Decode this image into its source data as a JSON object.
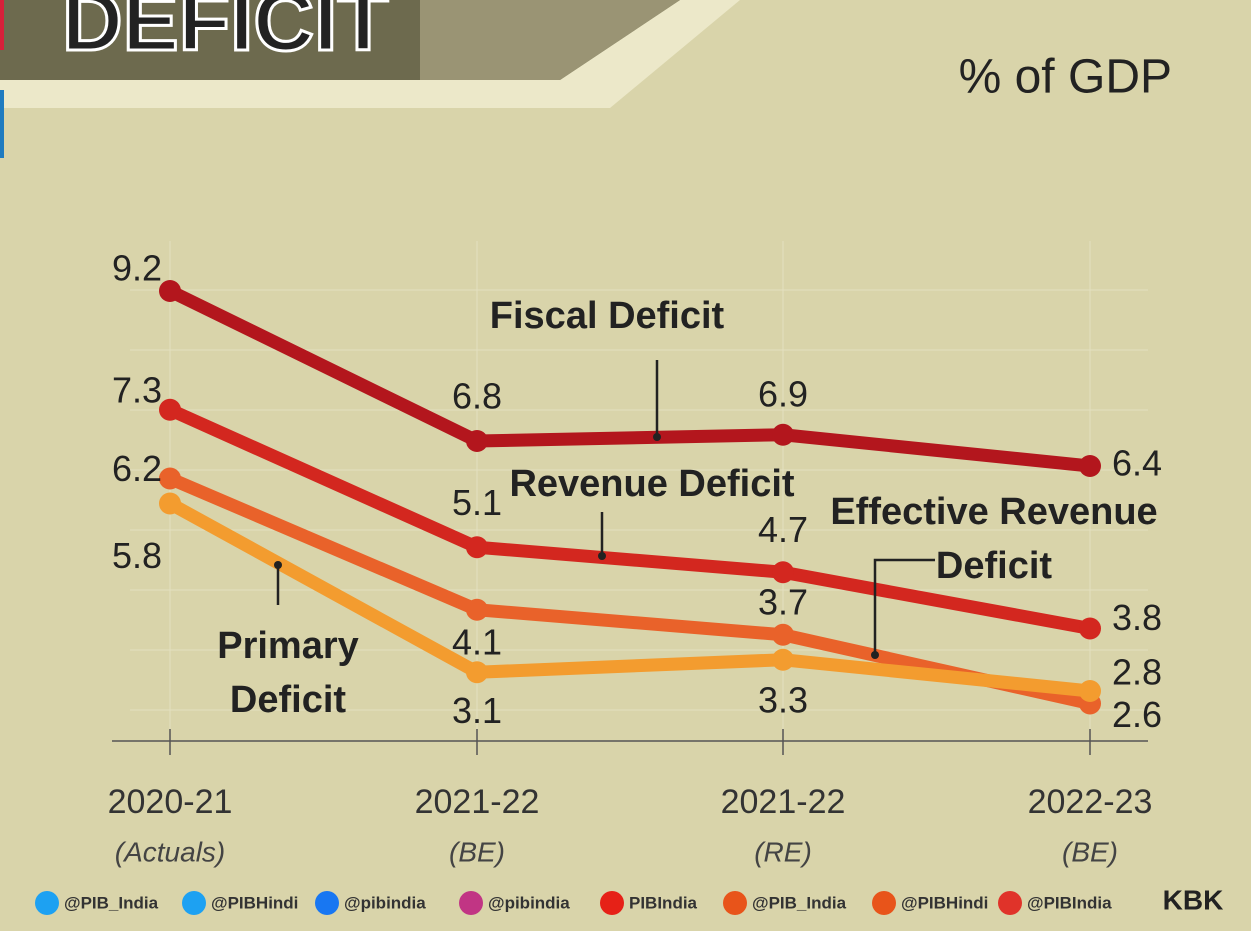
{
  "header": {
    "title": "DEFICIT",
    "subtitle": "% of GDP"
  },
  "chart_data": {
    "type": "line",
    "categories": [
      "2020-21",
      "2021-22",
      "2021-22",
      "2022-23"
    ],
    "category_notes": [
      "(Actuals)",
      "(BE)",
      "(RE)",
      "(BE)"
    ],
    "ylim": [
      2,
      10
    ],
    "series": [
      {
        "name": "Fiscal Deficit",
        "color": "#b3161d",
        "values": [
          9.2,
          6.8,
          6.9,
          6.4
        ]
      },
      {
        "name": "Revenue Deficit",
        "color": "#d3271f",
        "values": [
          7.3,
          5.1,
          4.7,
          3.8
        ]
      },
      {
        "name": "Effective Revenue Deficit",
        "color": "#e9622a",
        "values": [
          6.2,
          4.1,
          3.7,
          2.6
        ]
      },
      {
        "name": "Primary Deficit",
        "color": "#f39c2f",
        "values": [
          5.8,
          3.1,
          3.3,
          2.8
        ]
      }
    ]
  },
  "footer": {
    "handles": [
      "@PIB_India",
      "@PIBHindi",
      "@pibindia",
      "@pibindia",
      "PIBIndia",
      "@PIB_India",
      "@PIBHindi",
      "@PIBIndia"
    ],
    "credit": "KBK"
  }
}
